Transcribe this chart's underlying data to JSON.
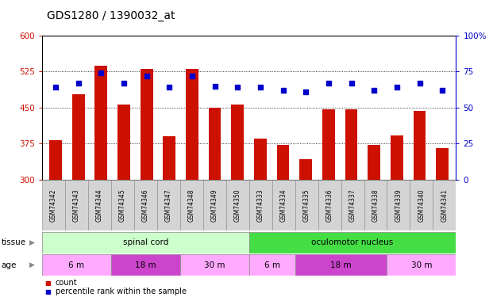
{
  "title": "GDS1280 / 1390032_at",
  "samples": [
    "GSM74342",
    "GSM74343",
    "GSM74344",
    "GSM74345",
    "GSM74346",
    "GSM74347",
    "GSM74348",
    "GSM74349",
    "GSM74350",
    "GSM74333",
    "GSM74334",
    "GSM74335",
    "GSM74336",
    "GSM74337",
    "GSM74338",
    "GSM74339",
    "GSM74340",
    "GSM74341"
  ],
  "counts": [
    383,
    478,
    538,
    456,
    530,
    390,
    530,
    450,
    456,
    385,
    372,
    342,
    446,
    446,
    372,
    392,
    443,
    365
  ],
  "percentiles": [
    64,
    67,
    74,
    67,
    72,
    64,
    72,
    65,
    64,
    64,
    62,
    61,
    67,
    67,
    62,
    64,
    67,
    62
  ],
  "ymin": 300,
  "ymax": 600,
  "y2min": 0,
  "y2max": 100,
  "yticks_left": [
    300,
    375,
    450,
    525,
    600
  ],
  "yticks_right": [
    0,
    25,
    50,
    75,
    100
  ],
  "bar_color": "#cc1100",
  "dot_color": "#0000cc",
  "tissue_groups": [
    {
      "label": "spinal cord",
      "start": 0,
      "end": 9,
      "color": "#ccffcc"
    },
    {
      "label": "oculomotor nucleus",
      "start": 9,
      "end": 18,
      "color": "#44dd44"
    }
  ],
  "age_groups": [
    {
      "label": "6 m",
      "start": 0,
      "end": 3,
      "color": "#ffaaff"
    },
    {
      "label": "18 m",
      "start": 3,
      "end": 6,
      "color": "#cc44cc"
    },
    {
      "label": "30 m",
      "start": 6,
      "end": 9,
      "color": "#ffaaff"
    },
    {
      "label": "6 m",
      "start": 9,
      "end": 11,
      "color": "#ffaaff"
    },
    {
      "label": "18 m",
      "start": 11,
      "end": 15,
      "color": "#cc44cc"
    },
    {
      "label": "30 m",
      "start": 15,
      "end": 18,
      "color": "#ffaaff"
    }
  ],
  "bg_color": "#ffffff",
  "bar_width": 0.55,
  "title_fontsize": 10,
  "tick_fontsize": 7.5,
  "sample_fontsize": 5.5,
  "annot_fontsize": 7.5,
  "legend_fontsize": 7
}
